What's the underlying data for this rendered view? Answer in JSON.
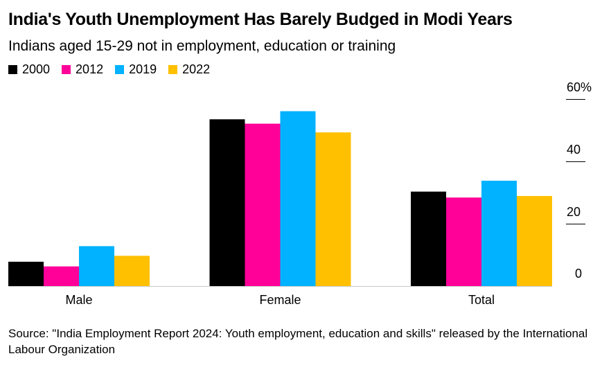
{
  "title": "India's Youth Unemployment Has Barely Budged in Modi Years",
  "subtitle": "Indians aged 15-29 not in employment, education or training",
  "source": "Source: \"India Employment Report 2024: Youth employment, education and skills\" released by the International Labour Organization",
  "colors": {
    "2000": "#000000",
    "2012": "#ff0099",
    "2019": "#00b2ff",
    "2022": "#ffc000"
  },
  "chart_data": {
    "type": "bar",
    "categories": [
      "Male",
      "Female",
      "Total"
    ],
    "series": [
      {
        "name": "2000",
        "values": [
          7.8,
          53.5,
          30.3
        ]
      },
      {
        "name": "2012",
        "values": [
          6.3,
          52.1,
          28.4
        ]
      },
      {
        "name": "2019",
        "values": [
          12.8,
          56.1,
          33.8
        ]
      },
      {
        "name": "2022",
        "values": [
          9.7,
          49.3,
          28.9
        ]
      }
    ],
    "ylim": [
      0,
      60
    ],
    "yticks": [
      0,
      20,
      40,
      60
    ],
    "ytick_labels": [
      "0",
      "20",
      "40",
      "60%"
    ],
    "axis_side": "right",
    "legend_position": "top-left",
    "grid": false
  }
}
